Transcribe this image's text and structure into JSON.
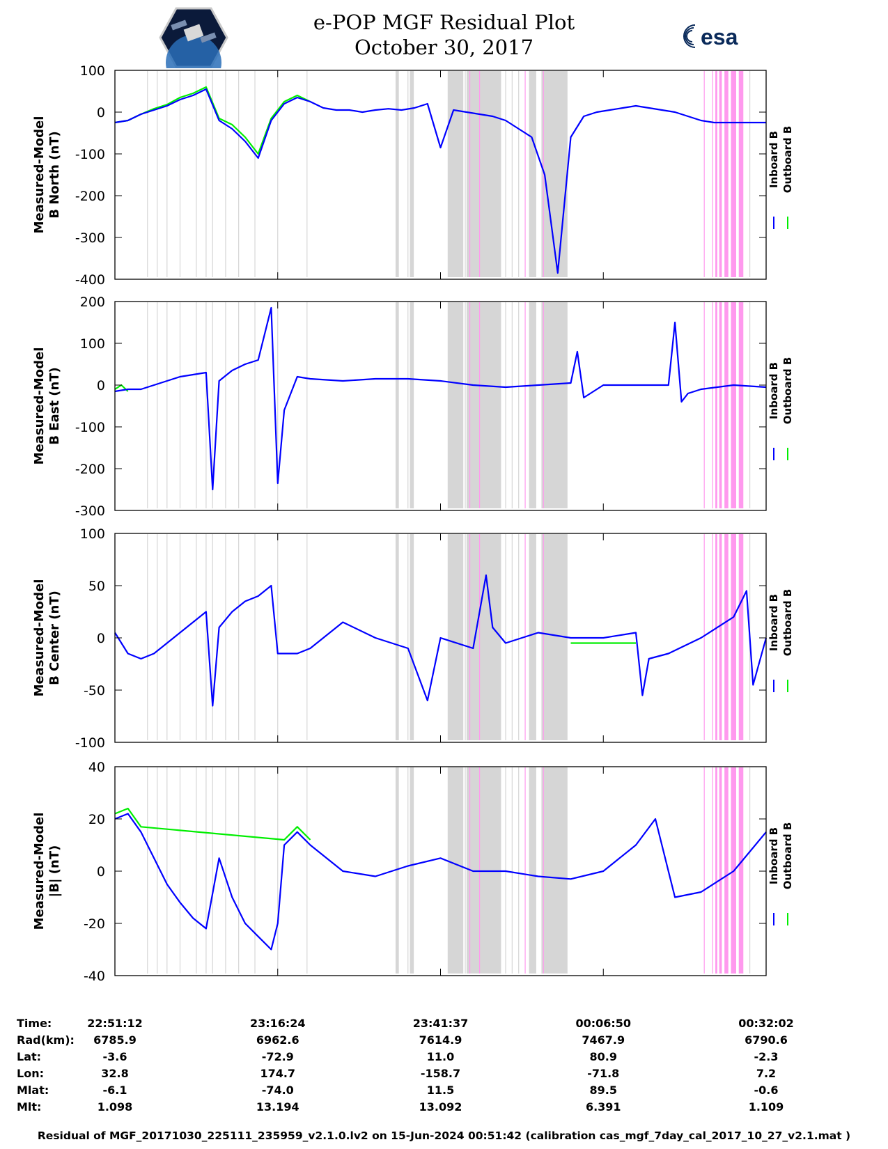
{
  "title": {
    "line1": "e-POP MGF Residual Plot",
    "line2": "October 30, 2017"
  },
  "logos": {
    "left": "cassiope-mission-patch",
    "right_text": "esa"
  },
  "colors": {
    "inboard": "#0000ff",
    "outboard": "#00ee00",
    "gray_band": "#d6d6d6",
    "pink_band": "#ff99ee"
  },
  "legend": {
    "inboard": "Inboard B",
    "outboard": "Outboard B"
  },
  "chart_data": [
    {
      "type": "line",
      "ylabel_lines": [
        "Measured-Model",
        "B North (nT)"
      ],
      "ylim": [
        -400,
        100
      ],
      "yticks": [
        "100",
        "0",
        "-100",
        "-200",
        "-300",
        "-400"
      ],
      "series": [
        {
          "name": "Inboard B",
          "color": "#0000ff",
          "x": [
            0,
            2,
            4,
            6,
            8,
            10,
            12,
            14,
            16,
            18,
            20,
            22,
            24,
            26,
            28,
            30,
            32,
            34,
            36,
            38,
            40,
            42,
            44,
            46,
            48,
            50,
            52,
            54,
            56,
            58,
            60,
            62,
            64,
            66,
            68,
            70,
            72,
            74,
            76,
            78,
            80,
            82,
            84,
            86,
            88,
            90,
            92,
            94,
            96,
            98,
            100
          ],
          "y": [
            -25,
            -20,
            -5,
            5,
            15,
            30,
            40,
            55,
            -20,
            -40,
            -70,
            -110,
            -20,
            20,
            35,
            25,
            10,
            5,
            5,
            0,
            5,
            8,
            5,
            10,
            20,
            -85,
            5,
            0,
            -5,
            -10,
            -20,
            -40,
            -60,
            -150,
            -385,
            -60,
            -10,
            0,
            5,
            10,
            15,
            10,
            5,
            0,
            -10,
            -20,
            -25,
            -25,
            -25,
            -25,
            -25
          ]
        },
        {
          "name": "Outboard B",
          "color": "#00ee00",
          "x": [
            0,
            2,
            4,
            6,
            8,
            10,
            12,
            14,
            16,
            18,
            20,
            22,
            24,
            26,
            28,
            30
          ],
          "y": [
            -25,
            -20,
            -5,
            8,
            18,
            35,
            45,
            60,
            -15,
            -30,
            -60,
            -100,
            -15,
            25,
            40,
            25
          ]
        }
      ]
    },
    {
      "type": "line",
      "ylabel_lines": [
        "Measured-Model",
        "B East (nT)"
      ],
      "ylim": [
        -300,
        200
      ],
      "yticks": [
        "200",
        "100",
        "0",
        "-100",
        "-200",
        "-300"
      ],
      "series": [
        {
          "name": "Inboard B",
          "color": "#0000ff",
          "x": [
            0,
            2,
            4,
            6,
            8,
            10,
            12,
            14,
            15,
            16,
            18,
            20,
            22,
            24,
            25,
            26,
            28,
            30,
            35,
            40,
            45,
            50,
            55,
            60,
            65,
            70,
            71,
            72,
            75,
            80,
            85,
            86,
            87,
            88,
            90,
            95,
            100
          ],
          "y": [
            -15,
            -10,
            -10,
            0,
            10,
            20,
            25,
            30,
            -250,
            10,
            35,
            50,
            60,
            185,
            -235,
            -60,
            20,
            15,
            10,
            15,
            15,
            10,
            0,
            -5,
            0,
            5,
            80,
            -30,
            0,
            0,
            0,
            150,
            -40,
            -20,
            -10,
            0,
            -5
          ]
        },
        {
          "name": "Outboard B",
          "color": "#00ee00",
          "x": [
            0,
            1,
            2
          ],
          "y": [
            -10,
            0,
            -15
          ]
        }
      ]
    },
    {
      "type": "line",
      "ylabel_lines": [
        "Measured-Model",
        "B Center (nT)"
      ],
      "ylim": [
        -100,
        100
      ],
      "yticks": [
        "100",
        "50",
        "0",
        "-50",
        "-100"
      ],
      "series": [
        {
          "name": "Inboard B",
          "color": "#0000ff",
          "x": [
            0,
            2,
            4,
            6,
            8,
            10,
            12,
            14,
            15,
            16,
            18,
            20,
            22,
            24,
            25,
            28,
            30,
            35,
            40,
            45,
            48,
            50,
            55,
            57,
            58,
            60,
            65,
            70,
            75,
            80,
            81,
            82,
            85,
            90,
            95,
            97,
            98,
            100
          ],
          "y": [
            5,
            -15,
            -20,
            -15,
            -5,
            5,
            15,
            25,
            -65,
            10,
            25,
            35,
            40,
            50,
            -15,
            -15,
            -10,
            15,
            0,
            -10,
            -60,
            0,
            -10,
            60,
            10,
            -5,
            5,
            0,
            0,
            5,
            -55,
            -20,
            -15,
            0,
            20,
            45,
            -45,
            0
          ]
        },
        {
          "name": "Outboard B",
          "color": "#00ee00",
          "x": [
            70,
            75,
            80
          ],
          "y": [
            -5,
            -5,
            -5
          ]
        }
      ]
    },
    {
      "type": "line",
      "ylabel_lines": [
        "Measured-Model",
        "|B| (nT)"
      ],
      "ylim": [
        -40,
        40
      ],
      "yticks": [
        "40",
        "20",
        "0",
        "-20",
        "-40"
      ],
      "series": [
        {
          "name": "Inboard B",
          "color": "#0000ff",
          "x": [
            0,
            2,
            4,
            6,
            8,
            10,
            12,
            14,
            16,
            18,
            20,
            22,
            24,
            25,
            26,
            28,
            30,
            35,
            40,
            45,
            50,
            55,
            60,
            65,
            70,
            75,
            80,
            83,
            86,
            90,
            95,
            100
          ],
          "y": [
            20,
            22,
            15,
            5,
            -5,
            -12,
            -18,
            -22,
            5,
            -10,
            -20,
            -25,
            -30,
            -20,
            10,
            15,
            10,
            0,
            -2,
            2,
            5,
            0,
            0,
            -2,
            -3,
            0,
            10,
            20,
            -10,
            -8,
            0,
            15
          ]
        },
        {
          "name": "Outboard B",
          "color": "#00ee00",
          "x": [
            0,
            2,
            4,
            26,
            28,
            30
          ],
          "y": [
            22,
            24,
            17,
            12,
            17,
            12
          ]
        }
      ]
    }
  ],
  "time_axis": {
    "labels": [
      "22:51:12",
      "23:16:24",
      "23:41:37",
      "00:06:50",
      "00:32:02"
    ]
  },
  "info_table": {
    "rows": [
      {
        "label": "Time:",
        "values": [
          "22:51:12",
          "23:16:24",
          "23:41:37",
          "00:06:50",
          "00:32:02"
        ]
      },
      {
        "label": "Rad(km):",
        "values": [
          "6785.9",
          "6962.6",
          "7614.9",
          "7467.9",
          "6790.6"
        ]
      },
      {
        "label": "Lat:",
        "values": [
          "-3.6",
          "-72.9",
          "11.0",
          "80.9",
          "-2.3"
        ]
      },
      {
        "label": "Lon:",
        "values": [
          "32.8",
          "174.7",
          "-158.7",
          "-71.8",
          "7.2"
        ]
      },
      {
        "label": "Mlat:",
        "values": [
          "-6.1",
          "-74.0",
          "11.5",
          "89.5",
          "-0.6"
        ]
      },
      {
        "label": "Mlt:",
        "values": [
          "1.098",
          "13.194",
          "13.092",
          "6.391",
          "1.109"
        ]
      }
    ]
  },
  "footer": "Residual of MGF_20171030_225111_235959_v2.1.0.lv2 on 15-Jun-2024 00:51:42 (calibration cas_mgf_7day_cal_2017_10_27_v2.1.mat )"
}
